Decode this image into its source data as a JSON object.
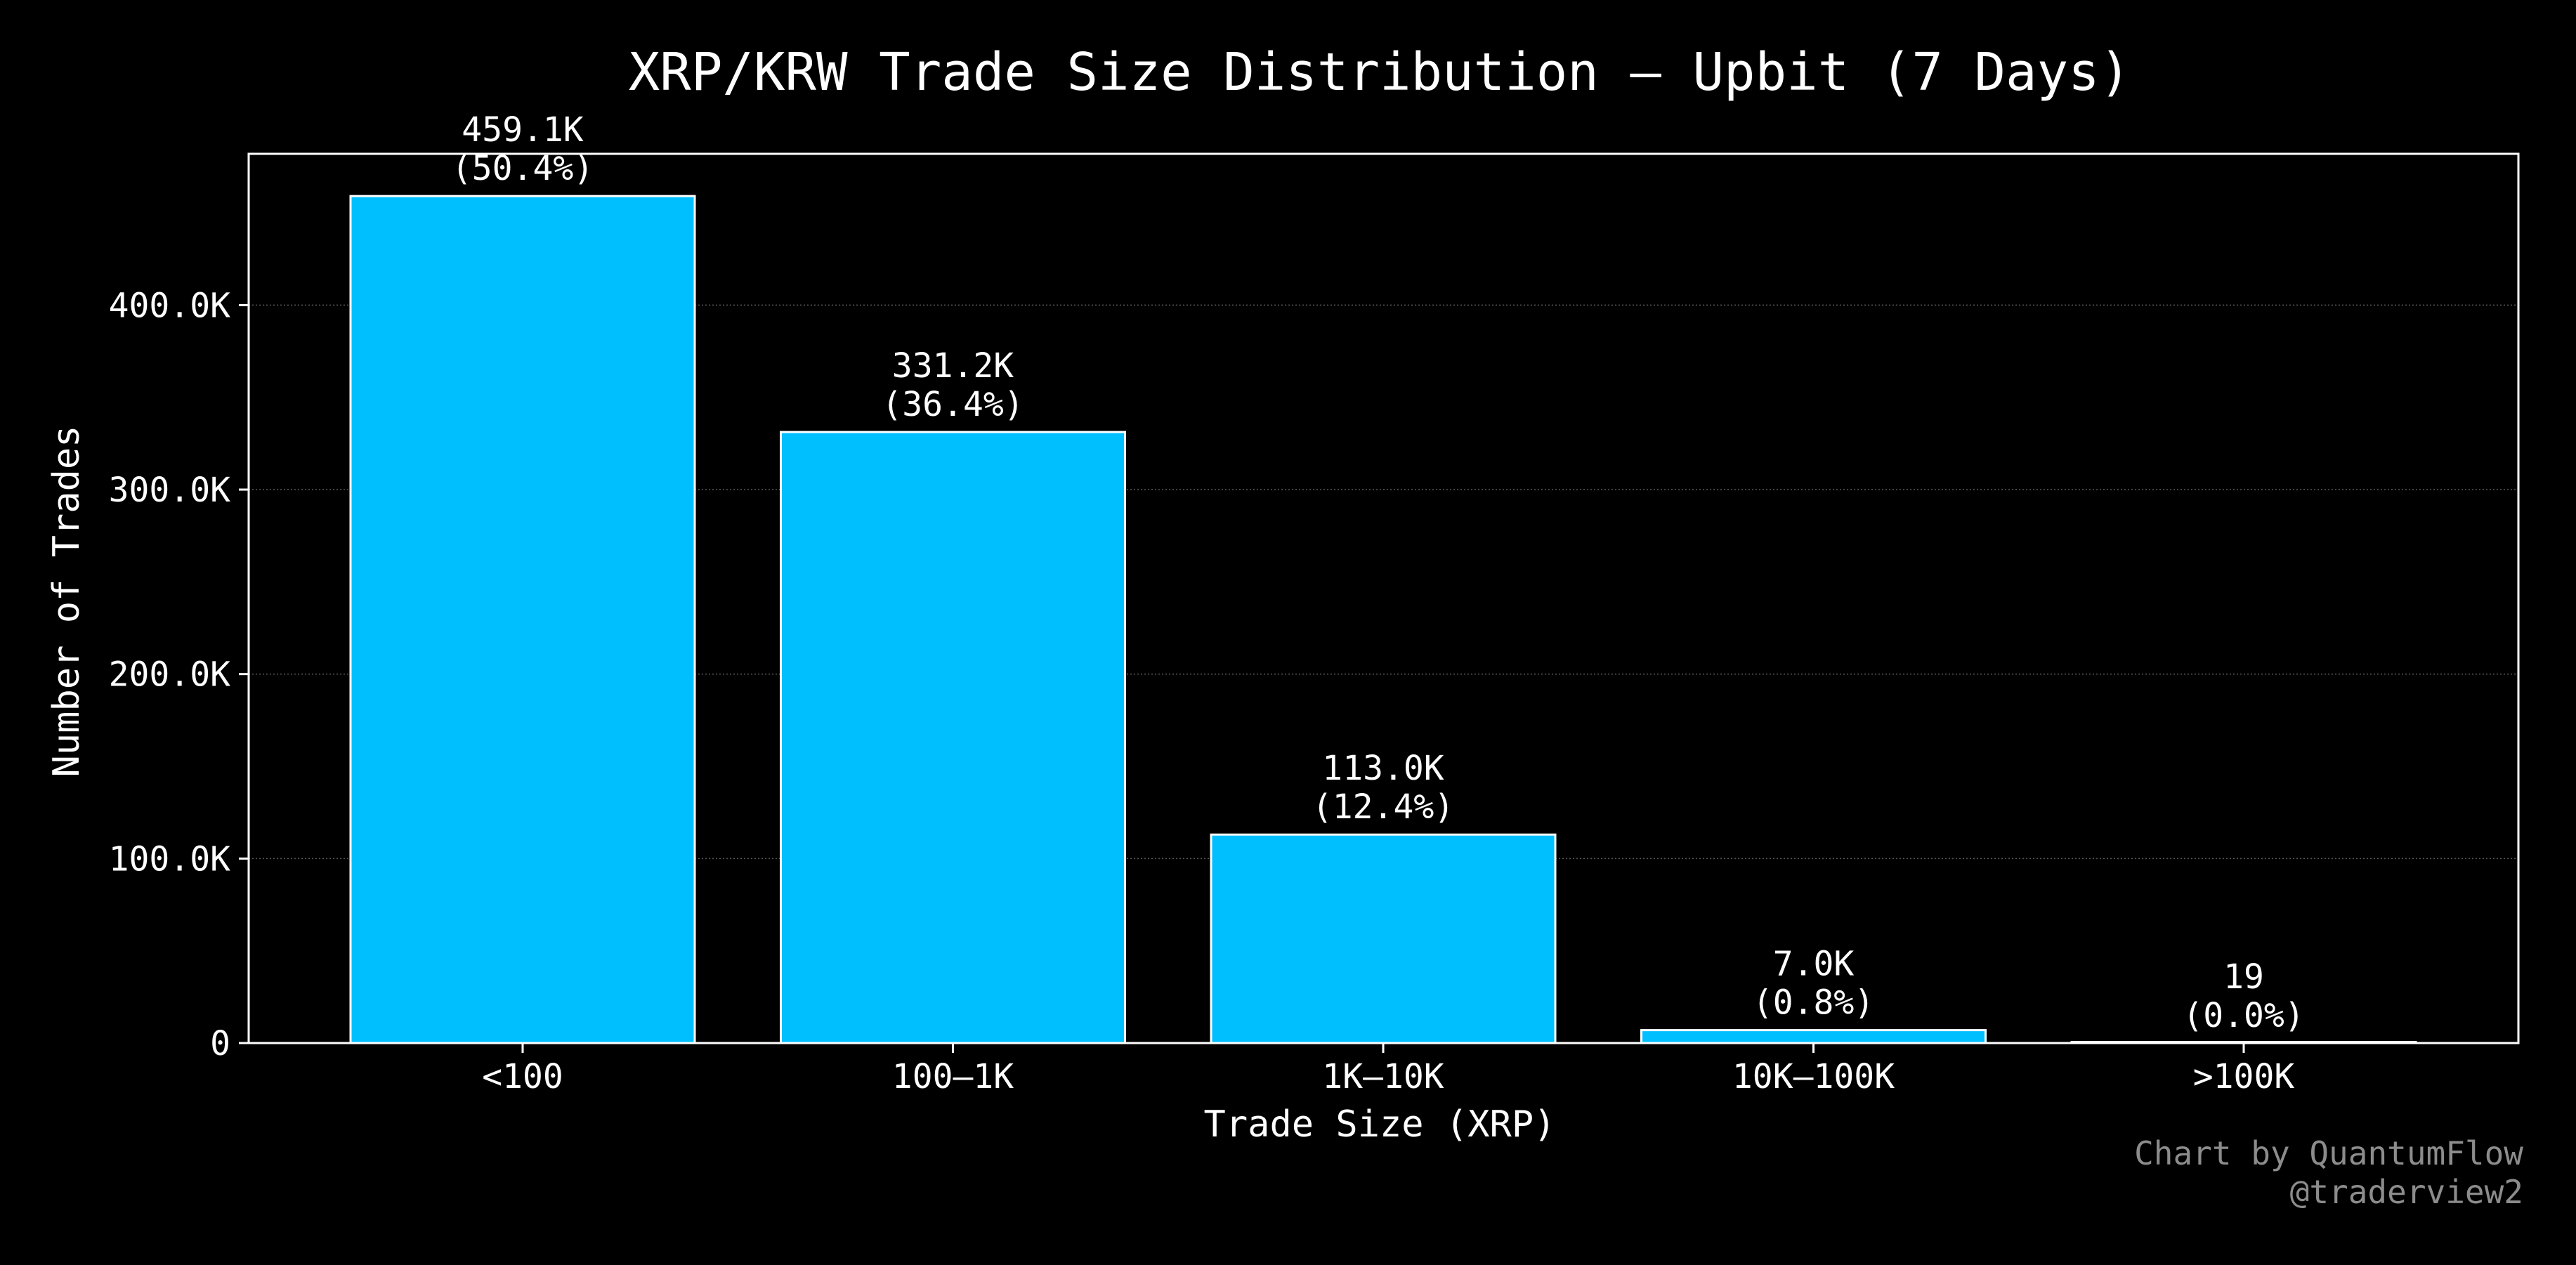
{
  "chart_data": {
    "type": "bar",
    "title": "XRP/KRW Trade Size Distribution — Upbit (7 Days)",
    "xlabel": "Trade Size (XRP)",
    "ylabel": "Number of Trades",
    "categories": [
      "<100",
      "100–1K",
      "1K–10K",
      "10K–100K",
      ">100K"
    ],
    "values": [
      459100,
      331200,
      113000,
      7000,
      19
    ],
    "data_labels": [
      {
        "count": "459.1K",
        "percent": "(50.4%)"
      },
      {
        "count": "331.2K",
        "percent": "(36.4%)"
      },
      {
        "count": "113.0K",
        "percent": "(12.4%)"
      },
      {
        "count": "7.0K",
        "percent": "(0.8%)"
      },
      {
        "count": "19",
        "percent": "(0.0%)"
      }
    ],
    "yticks": [
      {
        "value": 0,
        "label": "0"
      },
      {
        "value": 100000,
        "label": "100.0K"
      },
      {
        "value": 200000,
        "label": "200.0K"
      },
      {
        "value": 300000,
        "label": "300.0K"
      },
      {
        "value": 400000,
        "label": "400.0K"
      }
    ],
    "ylim": [
      0,
      482000
    ],
    "grid": true,
    "bar_color": "#00BFFF",
    "bar_edge_color": "#FFFFFF",
    "background": "#000000"
  },
  "credits": {
    "line1": "Chart by QuantumFlow",
    "line2": "@traderview2"
  }
}
